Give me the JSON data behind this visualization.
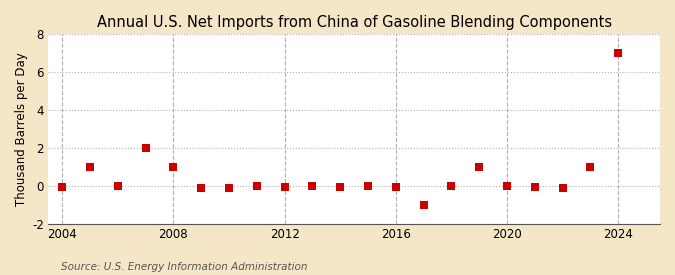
{
  "title": "Annual U.S. Net Imports from China of Gasoline Blending Components",
  "ylabel": "Thousand Barrels per Day",
  "source_text": "Source: U.S. Energy Information Administration",
  "background_color": "#f5e6c8",
  "plot_bg_color": "#ffffff",
  "grid_h_color": "#b0b0b0",
  "grid_v_color": "#b0b0b0",
  "marker_color": "#cc0000",
  "years": [
    2004,
    2005,
    2006,
    2007,
    2008,
    2009,
    2010,
    2011,
    2012,
    2013,
    2014,
    2015,
    2016,
    2017,
    2018,
    2019,
    2020,
    2021,
    2022,
    2023,
    2024
  ],
  "values": [
    -0.05,
    1.0,
    0.0,
    2.0,
    1.0,
    -0.1,
    -0.1,
    0.0,
    -0.05,
    0.0,
    -0.05,
    0.0,
    -0.05,
    -1.0,
    0.0,
    1.0,
    0.0,
    -0.05,
    -0.1,
    1.0,
    7.0
  ],
  "ylim": [
    -2,
    8
  ],
  "yticks": [
    -2,
    0,
    2,
    4,
    6,
    8
  ],
  "xlim": [
    2003.5,
    2025.5
  ],
  "xticks": [
    2004,
    2008,
    2012,
    2016,
    2020,
    2024
  ],
  "title_fontsize": 10.5,
  "label_fontsize": 8.5,
  "source_fontsize": 7.5,
  "marker_size": 28
}
